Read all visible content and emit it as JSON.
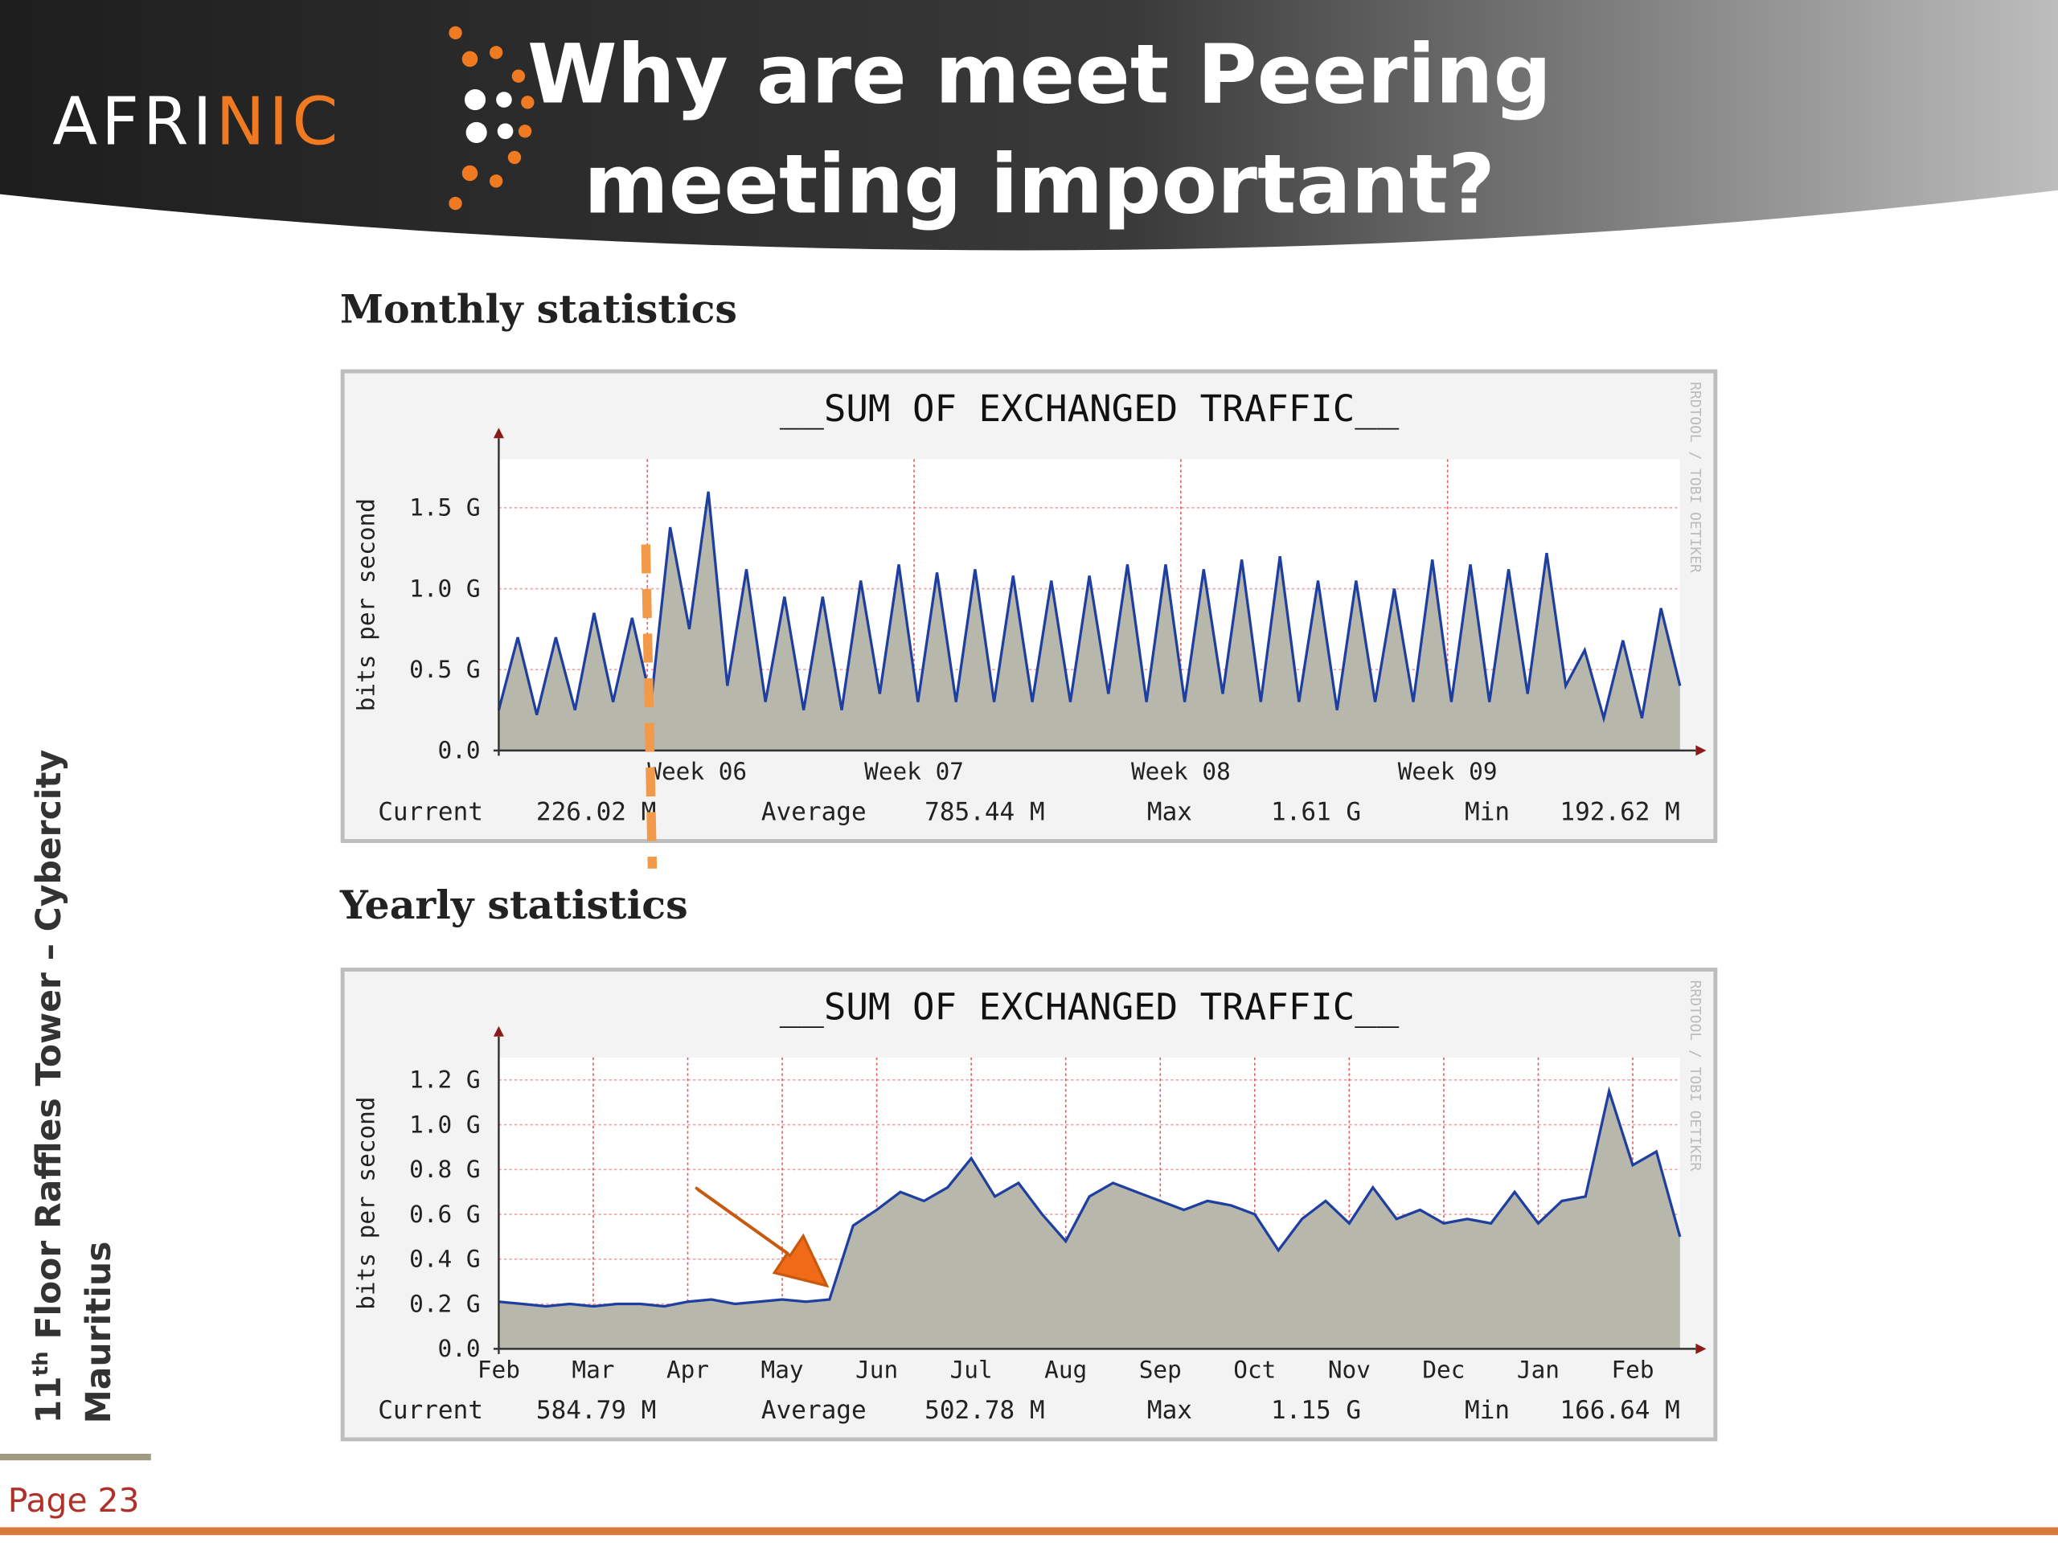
{
  "header": {
    "logo_left": "AFRI",
    "logo_right": "NIC",
    "title_lines": [
      "Why are meet Peering",
      "meeting important?"
    ]
  },
  "sidebar": {
    "line1_number": "11",
    "line1_sup": "th",
    "line1_rest": " Floor Raffles Tower – Cybercity",
    "line2": "Mauritius"
  },
  "footer": {
    "page": "Page 23"
  },
  "sections": [
    "Monthly statistics",
    "Yearly statistics"
  ],
  "chart_data": [
    {
      "type": "area",
      "title": "__SUM OF EXCHANGED TRAFFIC__",
      "y_label": "bits per second",
      "watermark": "RRDTOOL / TOBI OETIKER",
      "color": "#1f3fa0",
      "fill": "#b7b7ab",
      "grid": true,
      "xlim": [
        0,
        31
      ],
      "ylim": [
        0,
        1.8
      ],
      "xticks": [
        {
          "value": 3.9,
          "label": "Week 06"
        },
        {
          "value": 10.9,
          "label": "Week 07"
        },
        {
          "value": 17.9,
          "label": "Week 08"
        },
        {
          "value": 24.9,
          "label": "Week 09"
        }
      ],
      "yticks": [
        {
          "value": 0,
          "label": "0.0"
        },
        {
          "value": 0.5,
          "label": "0.5 G"
        },
        {
          "value": 1,
          "label": "1.0 G"
        },
        {
          "value": 1.5,
          "label": "1.5 G"
        }
      ],
      "x": [
        0,
        0.5,
        1,
        1.5,
        2,
        2.5,
        3,
        3.5,
        4,
        4.5,
        5,
        5.5,
        6,
        6.5,
        7,
        7.5,
        8,
        8.5,
        9,
        9.5,
        10,
        10.5,
        11,
        11.5,
        12,
        12.5,
        13,
        13.5,
        14,
        14.5,
        15,
        15.5,
        16,
        16.5,
        17,
        17.5,
        18,
        18.5,
        19,
        19.5,
        20,
        20.5,
        21,
        21.5,
        22,
        22.5,
        23,
        23.5,
        24,
        24.5,
        25,
        25.5,
        26,
        26.5,
        27,
        27.5,
        28,
        28.5,
        29,
        29.5,
        30,
        30.5,
        31
      ],
      "values": [
        0.25,
        0.7,
        0.22,
        0.7,
        0.25,
        0.85,
        0.3,
        0.82,
        0.3,
        1.38,
        0.75,
        1.6,
        0.4,
        1.12,
        0.3,
        0.95,
        0.25,
        0.95,
        0.25,
        1.05,
        0.35,
        1.15,
        0.3,
        1.1,
        0.3,
        1.12,
        0.3,
        1.08,
        0.3,
        1.05,
        0.3,
        1.08,
        0.35,
        1.15,
        0.3,
        1.15,
        0.3,
        1.12,
        0.35,
        1.18,
        0.3,
        1.2,
        0.3,
        1.05,
        0.25,
        1.05,
        0.3,
        1.0,
        0.3,
        1.18,
        0.3,
        1.15,
        0.3,
        1.12,
        0.35,
        1.22,
        0.4,
        0.62,
        0.2,
        0.68,
        0.2,
        0.88,
        0.4
      ],
      "stats": [
        {
          "label": "Current",
          "value": "226.02 M"
        },
        {
          "label": "Average",
          "value": "785.44 M"
        },
        {
          "label": "Max",
          "value": "1.61 G"
        },
        {
          "label": "Min",
          "value": "192.62 M"
        }
      ]
    },
    {
      "type": "area",
      "title": "__SUM OF EXCHANGED TRAFFIC__",
      "y_label": "bits per second",
      "watermark": "RRDTOOL / TOBI OETIKER",
      "color": "#1f3fa0",
      "fill": "#b7b7ab",
      "grid": true,
      "xlim": [
        0,
        12.5
      ],
      "ylim": [
        0,
        1.3
      ],
      "xticks": [
        {
          "value": 0,
          "label": "Feb"
        },
        {
          "value": 1,
          "label": "Mar"
        },
        {
          "value": 2,
          "label": "Apr"
        },
        {
          "value": 3,
          "label": "May"
        },
        {
          "value": 4,
          "label": "Jun"
        },
        {
          "value": 5,
          "label": "Jul"
        },
        {
          "value": 6,
          "label": "Aug"
        },
        {
          "value": 7,
          "label": "Sep"
        },
        {
          "value": 8,
          "label": "Oct"
        },
        {
          "value": 9,
          "label": "Nov"
        },
        {
          "value": 10,
          "label": "Dec"
        },
        {
          "value": 11,
          "label": "Jan"
        },
        {
          "value": 12,
          "label": "Feb"
        }
      ],
      "yticks": [
        {
          "value": 0,
          "label": "0.0"
        },
        {
          "value": 0.2,
          "label": "0.2 G"
        },
        {
          "value": 0.4,
          "label": "0.4 G"
        },
        {
          "value": 0.6,
          "label": "0.6 G"
        },
        {
          "value": 0.8,
          "label": "0.8 G"
        },
        {
          "value": 1,
          "label": "1.0 G"
        },
        {
          "value": 1.2,
          "label": "1.2 G"
        }
      ],
      "x": [
        0,
        0.25,
        0.5,
        0.75,
        1,
        1.25,
        1.5,
        1.75,
        2,
        2.25,
        2.5,
        2.75,
        3,
        3.25,
        3.5,
        3.75,
        4,
        4.25,
        4.5,
        4.75,
        5,
        5.25,
        5.5,
        5.75,
        6,
        6.25,
        6.5,
        6.75,
        7,
        7.25,
        7.5,
        7.75,
        8,
        8.25,
        8.5,
        8.75,
        9,
        9.25,
        9.5,
        9.75,
        10,
        10.25,
        10.5,
        10.75,
        11,
        11.25,
        11.5,
        11.75,
        12,
        12.25,
        12.5
      ],
      "values": [
        0.21,
        0.2,
        0.19,
        0.2,
        0.19,
        0.2,
        0.2,
        0.19,
        0.21,
        0.22,
        0.2,
        0.21,
        0.22,
        0.21,
        0.22,
        0.55,
        0.62,
        0.7,
        0.66,
        0.72,
        0.85,
        0.68,
        0.74,
        0.6,
        0.48,
        0.68,
        0.74,
        0.7,
        0.66,
        0.62,
        0.66,
        0.64,
        0.6,
        0.44,
        0.58,
        0.66,
        0.56,
        0.72,
        0.58,
        0.62,
        0.56,
        0.58,
        0.56,
        0.7,
        0.56,
        0.66,
        0.68,
        1.15,
        0.82,
        0.88,
        0.5
      ],
      "stats": [
        {
          "label": "Current",
          "value": "584.79 M"
        },
        {
          "label": "Average",
          "value": "502.78 M"
        },
        {
          "label": "Max",
          "value": "1.15 G"
        },
        {
          "label": "Min",
          "value": "166.64 M"
        }
      ]
    }
  ]
}
